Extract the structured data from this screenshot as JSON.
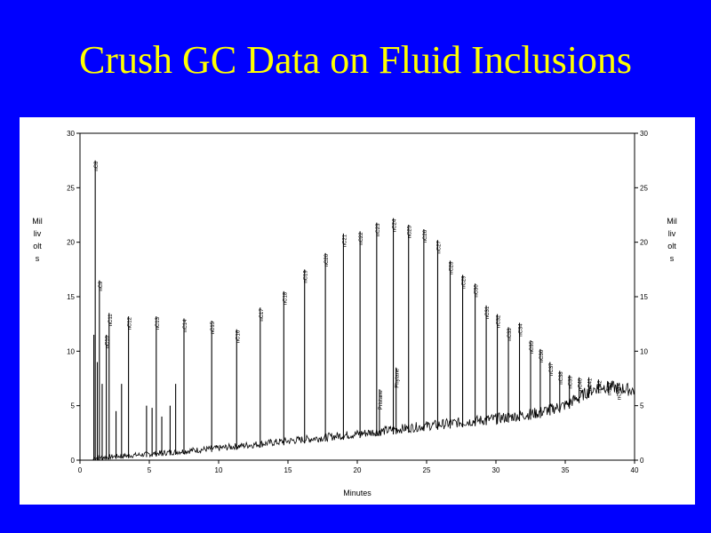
{
  "slide": {
    "title": "Crush GC Data on Fluid Inclusions"
  },
  "colors": {
    "background": "#0000ff",
    "title": "#ffff00",
    "panel": "#ffffff",
    "trace": "#000000"
  },
  "chart_data": {
    "type": "line",
    "title": "",
    "xlabel": "Minutes",
    "ylabel_left": "Millivolts",
    "ylabel_right": "Millivolts",
    "xlim": [
      0,
      40
    ],
    "ylim": [
      0,
      30
    ],
    "xticks": [
      0,
      5,
      10,
      15,
      20,
      25,
      30,
      35,
      40
    ],
    "yticks": [
      0,
      5,
      10,
      15,
      20,
      25,
      30
    ],
    "grid": false,
    "peaks": [
      {
        "x": 1.1,
        "y": 27.5,
        "label": "nC8"
      },
      {
        "x": 1.4,
        "y": 16.5,
        "label": "nC9"
      },
      {
        "x": 1.9,
        "y": 11.5,
        "label": "nC10"
      },
      {
        "x": 2.1,
        "y": 13.5,
        "label": "nC11"
      },
      {
        "x": 3.5,
        "y": 13.2,
        "label": "nC12"
      },
      {
        "x": 5.5,
        "y": 13.2,
        "label": "nC13"
      },
      {
        "x": 7.5,
        "y": 13.0,
        "label": "nC14"
      },
      {
        "x": 9.5,
        "y": 12.8,
        "label": "nC15"
      },
      {
        "x": 11.3,
        "y": 12.0,
        "label": "nC16"
      },
      {
        "x": 13.0,
        "y": 14.0,
        "label": "nC17"
      },
      {
        "x": 14.7,
        "y": 15.5,
        "label": "nC18"
      },
      {
        "x": 16.2,
        "y": 17.5,
        "label": "nC19"
      },
      {
        "x": 17.7,
        "y": 19.0,
        "label": "nC20"
      },
      {
        "x": 19.0,
        "y": 20.8,
        "label": "nC21"
      },
      {
        "x": 20.2,
        "y": 21.0,
        "label": "nC22"
      },
      {
        "x": 21.4,
        "y": 21.8,
        "label": "nC23"
      },
      {
        "x": 22.6,
        "y": 22.2,
        "label": "nC24"
      },
      {
        "x": 23.7,
        "y": 21.6,
        "label": "nC25"
      },
      {
        "x": 24.8,
        "y": 21.2,
        "label": "nC26"
      },
      {
        "x": 25.8,
        "y": 20.2,
        "label": "nC27"
      },
      {
        "x": 26.7,
        "y": 18.3,
        "label": "nC28"
      },
      {
        "x": 27.6,
        "y": 17.0,
        "label": "nC29"
      },
      {
        "x": 28.5,
        "y": 16.2,
        "label": "nC30"
      },
      {
        "x": 29.3,
        "y": 14.2,
        "label": "nC31"
      },
      {
        "x": 30.1,
        "y": 13.4,
        "label": "nC32"
      },
      {
        "x": 30.9,
        "y": 12.2,
        "label": "nC33"
      },
      {
        "x": 31.7,
        "y": 12.6,
        "label": "nC34"
      },
      {
        "x": 32.5,
        "y": 11.0,
        "label": "nC35"
      },
      {
        "x": 33.2,
        "y": 10.2,
        "label": "nC36"
      },
      {
        "x": 33.9,
        "y": 9.0,
        "label": "nC37"
      },
      {
        "x": 34.6,
        "y": 8.2,
        "label": "nC38"
      },
      {
        "x": 35.3,
        "y": 7.8,
        "label": "nC39"
      },
      {
        "x": 36.0,
        "y": 7.6,
        "label": "nC40"
      },
      {
        "x": 36.7,
        "y": 7.6,
        "label": "nC41"
      },
      {
        "x": 37.4,
        "y": 7.4,
        "label": "nC42"
      },
      {
        "x": 38.1,
        "y": 7.2,
        "label": "nC43"
      },
      {
        "x": 38.8,
        "y": 6.8,
        "label": "nC44"
      }
    ],
    "minor_peaks": [
      {
        "x": 1.0,
        "y": 11.5
      },
      {
        "x": 1.25,
        "y": 9.0
      },
      {
        "x": 1.6,
        "y": 7.0
      },
      {
        "x": 2.6,
        "y": 4.5
      },
      {
        "x": 3.0,
        "y": 7.0
      },
      {
        "x": 4.8,
        "y": 5.0
      },
      {
        "x": 5.2,
        "y": 4.8
      },
      {
        "x": 5.9,
        "y": 4.0
      },
      {
        "x": 6.5,
        "y": 5.0
      },
      {
        "x": 6.9,
        "y": 7.0
      },
      {
        "x": 21.6,
        "y": 6.5,
        "label": "Pristane"
      },
      {
        "x": 22.8,
        "y": 8.5,
        "label": "Phytane"
      }
    ],
    "baseline": [
      {
        "x": 0.0,
        "y": 0.0
      },
      {
        "x": 1.0,
        "y": 0.0
      },
      {
        "x": 5.0,
        "y": 0.3
      },
      {
        "x": 10.0,
        "y": 0.8
      },
      {
        "x": 15.0,
        "y": 1.4
      },
      {
        "x": 20.0,
        "y": 2.0
      },
      {
        "x": 25.0,
        "y": 2.7
      },
      {
        "x": 30.0,
        "y": 3.3
      },
      {
        "x": 33.0,
        "y": 3.8
      },
      {
        "x": 35.0,
        "y": 4.5
      },
      {
        "x": 36.5,
        "y": 5.6
      },
      {
        "x": 37.5,
        "y": 6.2
      },
      {
        "x": 38.5,
        "y": 6.1
      },
      {
        "x": 40.0,
        "y": 5.8
      }
    ]
  }
}
